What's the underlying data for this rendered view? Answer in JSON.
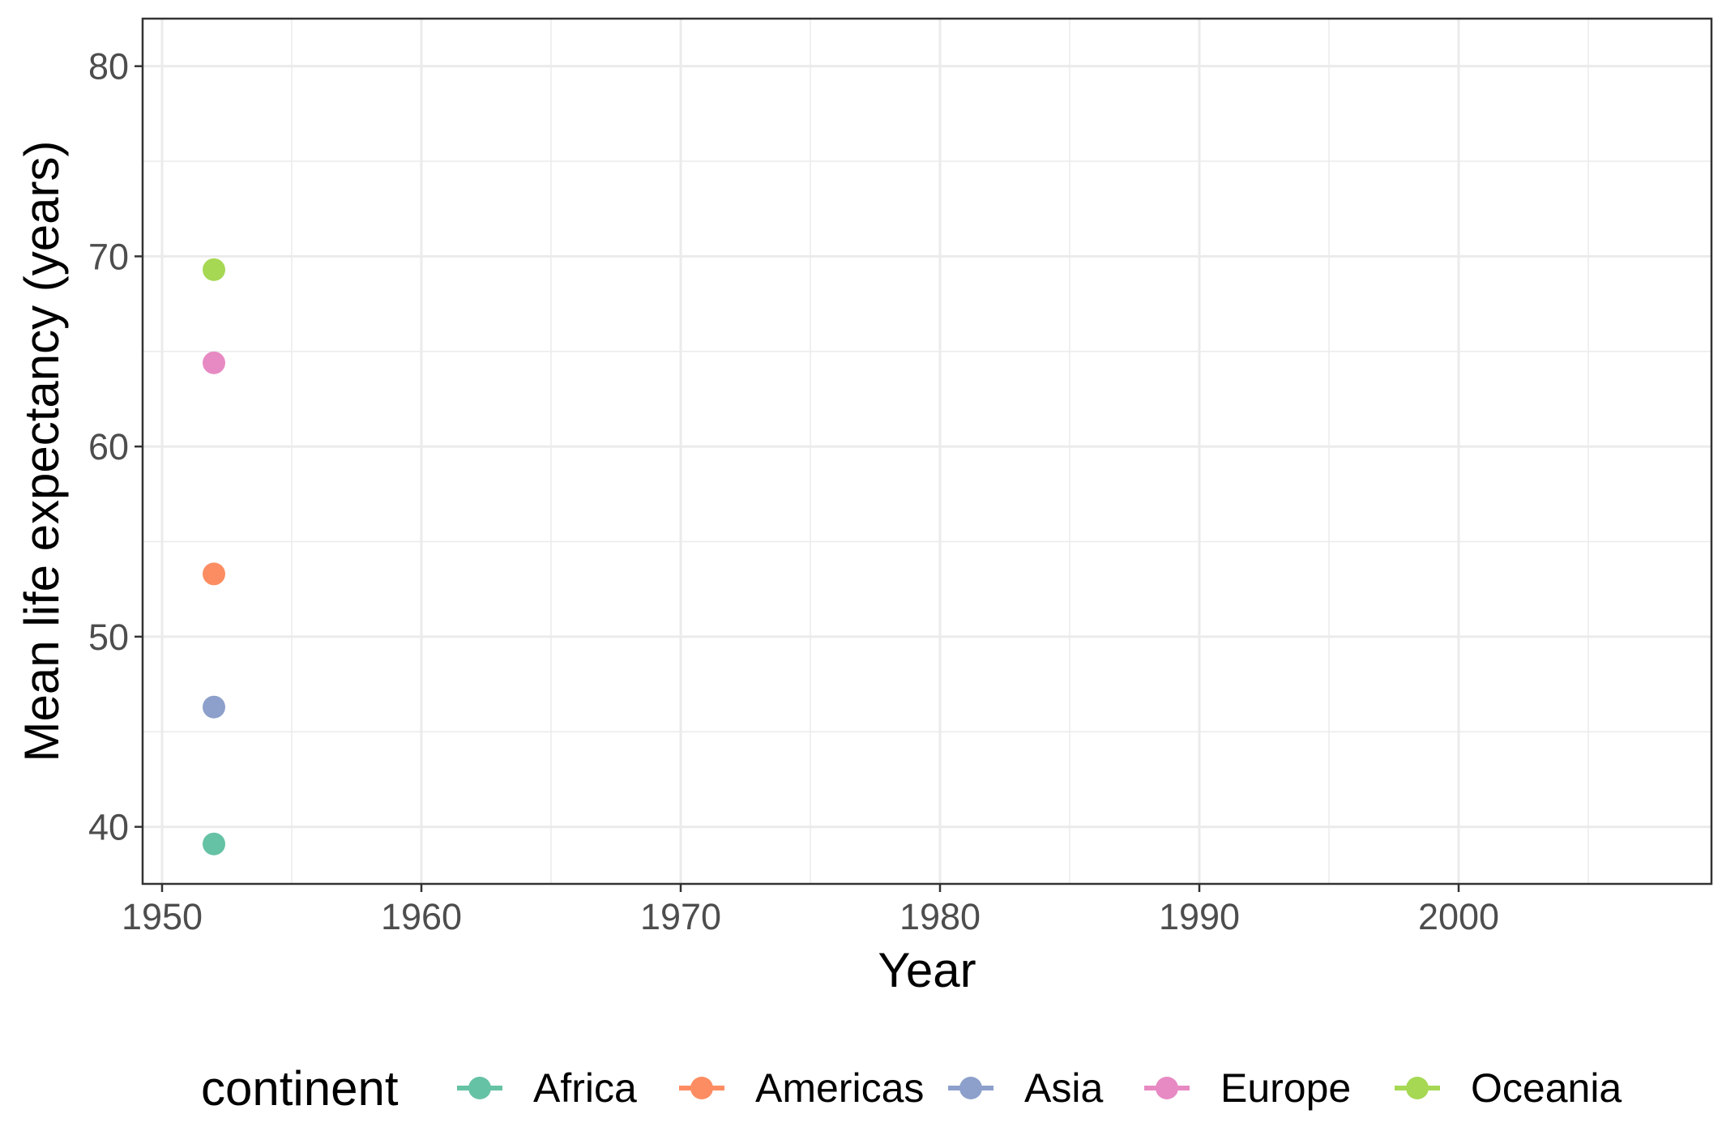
{
  "chart_data": {
    "type": "scatter",
    "title": "",
    "xlabel": "Year",
    "ylabel": "Mean life expectancy (years)",
    "xlim": [
      1949.25,
      2009.75
    ],
    "ylim": [
      37,
      82.5
    ],
    "x_ticks": [
      1950,
      1960,
      1970,
      1980,
      1990,
      2000
    ],
    "y_ticks": [
      40,
      50,
      60,
      70,
      80
    ],
    "grid": true,
    "legend": {
      "title": "continent",
      "position": "bottom"
    },
    "series": [
      {
        "name": "Africa",
        "color": "#66C2A5",
        "points": [
          {
            "x": 1952,
            "y": 39.1
          }
        ]
      },
      {
        "name": "Americas",
        "color": "#FC8D62",
        "points": [
          {
            "x": 1952,
            "y": 53.3
          }
        ]
      },
      {
        "name": "Asia",
        "color": "#8DA0CB",
        "points": [
          {
            "x": 1952,
            "y": 46.3
          }
        ]
      },
      {
        "name": "Europe",
        "color": "#E78AC3",
        "points": [
          {
            "x": 1952,
            "y": 64.4
          }
        ]
      },
      {
        "name": "Oceania",
        "color": "#A6D854",
        "points": [
          {
            "x": 1952,
            "y": 69.3
          }
        ]
      }
    ]
  }
}
